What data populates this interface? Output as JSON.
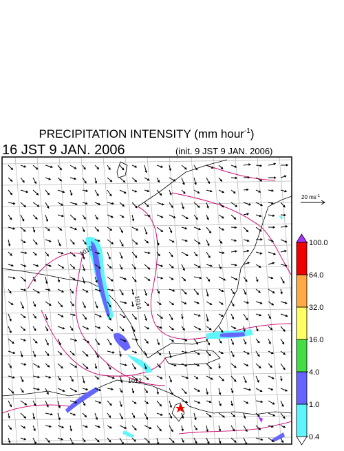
{
  "title": {
    "main": "PRECIPITATION INTENSITY (mm hour",
    "sup": "-1",
    "close": ")"
  },
  "valid_time": "16 JST 9 JAN. 2006",
  "init_time": "(init. 9 JST 9 JAN. 2006)",
  "vector_scale": {
    "main": "20 ms",
    "sup": "-1"
  },
  "isobar_labels": [
    "1010",
    "1014",
    "1012"
  ],
  "colorbar": {
    "levels": [
      {
        "value": 0.4,
        "label": "0.4"
      },
      {
        "value": 1,
        "label": "1.0"
      },
      {
        "value": 4,
        "label": "4.0"
      },
      {
        "value": 16,
        "label": "16.0"
      },
      {
        "value": 32,
        "label": "32.0"
      },
      {
        "value": 64,
        "label": "64.0"
      },
      {
        "value": 100,
        "label": "100.0"
      }
    ],
    "colors": [
      "#5ff5ff",
      "#6666ff",
      "#44dd44",
      "#ffff66",
      "#ffaa44",
      "#ee0000"
    ],
    "below_color": "#ffffff",
    "above_color": "#aa33ff"
  }
}
